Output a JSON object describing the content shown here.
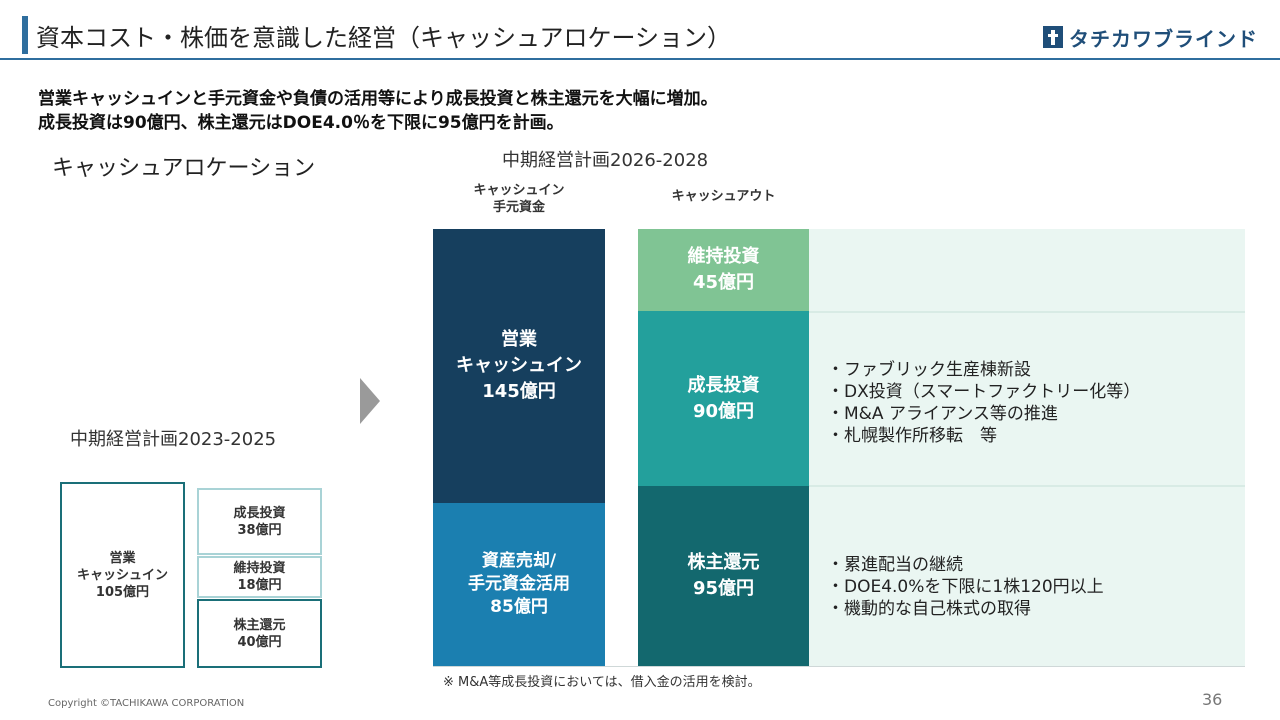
{
  "header": {
    "title": "資本コスト・株価を意識した経営（キャッシュアロケーション）",
    "logo_text": "タチカワブラインド",
    "logo_icon": "tachikawa-logo-mark",
    "accent_color": "#2f6e9e"
  },
  "lead": {
    "line1": "営業キャッシュインと手元資金や負債の活用等により成長投資と株主還元を大幅に増加。",
    "line2": "成長投資は90億円、株主還元はDOE4.0％を下限に95億円を計画。"
  },
  "section_label": "キャッシュアロケーション",
  "plan_2023": {
    "title": "中期経営計画2023-2025",
    "cash_in": {
      "label": "営業\nキャッシュイン",
      "amount": "105億円"
    },
    "cash_out": [
      {
        "label": "成長投資",
        "amount": "38億円"
      },
      {
        "label": "維持投資",
        "amount": "18億円"
      },
      {
        "label": "株主還元",
        "amount": "40億円"
      }
    ]
  },
  "plan_2026": {
    "title": "中期経営計画2026-2028",
    "cash_in_header": "キャッシュイン\n手元資金",
    "cash_out_header": "キャッシュアウト",
    "cash_in": [
      {
        "label": "営業\nキャッシュイン",
        "amount": "145億円",
        "color": "#163f5e"
      },
      {
        "label": "資産売却/\n手元資金活用",
        "amount": "85億円",
        "color": "#1b7fb0"
      }
    ],
    "cash_out": [
      {
        "label": "維持投資",
        "amount": "45億円",
        "color": "#80c494",
        "bullets": []
      },
      {
        "label": "成長投資",
        "amount": "90億円",
        "color": "#23a09c",
        "bullets": [
          "・ファブリック生産棟新設",
          "・DX投資（スマートファクトリー化等）",
          "・M&A アライアンス等の推進",
          "・札幌製作所移転　等"
        ]
      },
      {
        "label": "株主還元",
        "amount": "95億円",
        "color": "#13686e",
        "bullets": [
          "・累進配当の継続",
          "・DOE4.0%を下限に1株120円以上",
          "・機動的な自己株式の取得"
        ]
      }
    ]
  },
  "note": "※ M&A等成長投資においては、借入金の活用を検討。",
  "footer": {
    "copyright": "Copyright ©TACHIKAWA CORPORATION",
    "page": "36"
  }
}
